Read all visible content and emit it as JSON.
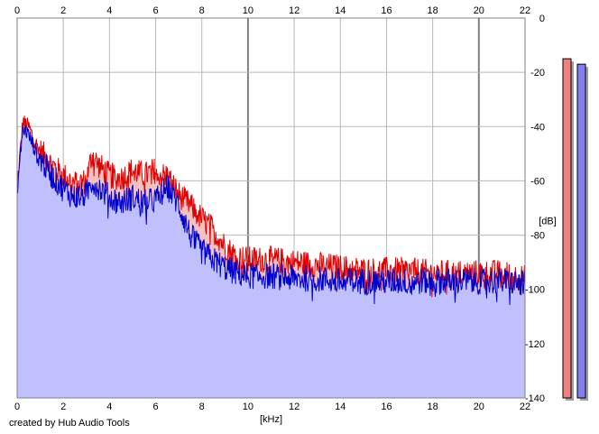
{
  "footer": {
    "credit": "created by Hub Audio Tools"
  },
  "chart_data": {
    "type": "area",
    "title": "",
    "xlabel": "[kHz]",
    "ylabel": "[dB]",
    "xlim": [
      0,
      22
    ],
    "ylim": [
      -140,
      0
    ],
    "x_ticks": [
      0,
      2,
      4,
      6,
      8,
      10,
      12,
      14,
      16,
      18,
      20,
      22
    ],
    "y_ticks": [
      0,
      -20,
      -40,
      -60,
      -80,
      -100,
      -120,
      -140
    ],
    "grid": true,
    "x": [
      0,
      0.25,
      0.5,
      0.75,
      1,
      1.5,
      2,
      2.5,
      3,
      3.25,
      3.5,
      4,
      4.5,
      5,
      5.5,
      6,
      6.25,
      6.5,
      7,
      7.5,
      8,
      8.5,
      9,
      9.5,
      10,
      11,
      12,
      13,
      14,
      15,
      16,
      17,
      18,
      19,
      20,
      21,
      22
    ],
    "series": [
      {
        "color": "#e00000",
        "fill": "#f5c0c0",
        "values": [
          -62,
          -38,
          -40,
          -45,
          -49,
          -54,
          -58,
          -61,
          -60,
          -50,
          -54,
          -58,
          -59,
          -56,
          -58,
          -56,
          -58,
          -58,
          -65,
          -69,
          -74,
          -78,
          -84,
          -88,
          -89,
          -89,
          -90,
          -91,
          -92,
          -93,
          -93,
          -93,
          -94,
          -94,
          -94,
          -94,
          -96
        ]
      },
      {
        "color": "#0000cc",
        "fill": "#c0c0ff",
        "values": [
          -64,
          -40,
          -43,
          -48,
          -52,
          -58,
          -63,
          -66,
          -65,
          -60,
          -62,
          -66,
          -68,
          -66,
          -68,
          -67,
          -65,
          -62,
          -69,
          -80,
          -86,
          -89,
          -92,
          -94,
          -95,
          -95,
          -96,
          -96,
          -97,
          -97,
          -97,
          -97,
          -97,
          -97,
          -97,
          -97,
          -98
        ]
      }
    ],
    "meters": [
      {
        "color": "#f08080",
        "value": -15
      },
      {
        "color": "#8080f0",
        "value": -17
      }
    ]
  }
}
